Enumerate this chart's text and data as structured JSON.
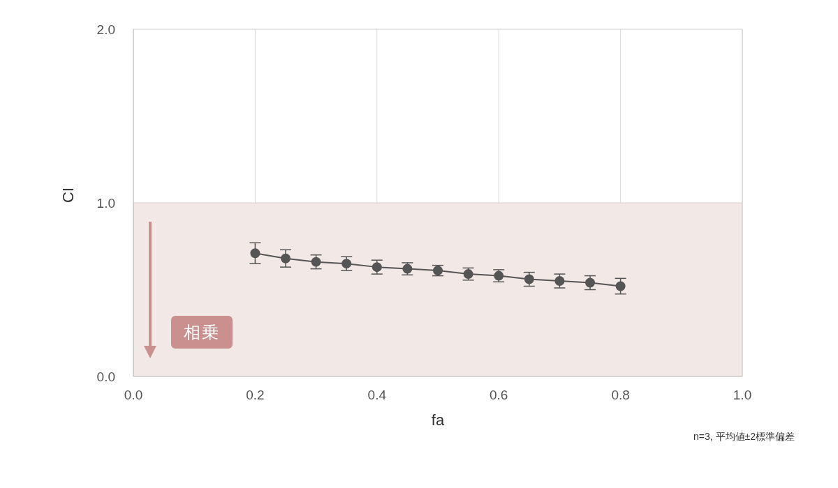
{
  "chart_data": {
    "type": "line",
    "xlabel": "fa",
    "ylabel": "CI",
    "x": [
      0.2,
      0.25,
      0.3,
      0.35,
      0.4,
      0.45,
      0.5,
      0.55,
      0.6,
      0.65,
      0.7,
      0.75,
      0.8
    ],
    "series": [
      {
        "color": "#555555",
        "values": [
          0.71,
          0.68,
          0.66,
          0.65,
          0.63,
          0.62,
          0.61,
          0.59,
          0.58,
          0.56,
          0.55,
          0.54,
          0.52
        ],
        "errors": [
          0.06,
          0.05,
          0.04,
          0.04,
          0.04,
          0.035,
          0.03,
          0.035,
          0.035,
          0.04,
          0.04,
          0.04,
          0.045
        ]
      }
    ],
    "xlim": [
      0,
      1
    ],
    "xticks": [
      {
        "value": 0,
        "label": "0.0"
      },
      0.2,
      0.4,
      0.6,
      0.8,
      {
        "value": 1,
        "label": "1.0"
      }
    ],
    "ylim": [
      0,
      2
    ],
    "yticks": [
      {
        "value": 0,
        "label": "0.0"
      },
      {
        "value": 1,
        "label": "1.0"
      },
      {
        "value": 2,
        "label": "2.0"
      }
    ],
    "bands": [
      {
        "axis": "y",
        "from": 0,
        "to": 1,
        "color": "#f2e8e6"
      }
    ],
    "grid": "x",
    "marker": "circle",
    "line_style": "solid",
    "legend": false,
    "annotations": [
      "相乗",
      "n=3, 平均値±2標準偏差"
    ]
  }
}
